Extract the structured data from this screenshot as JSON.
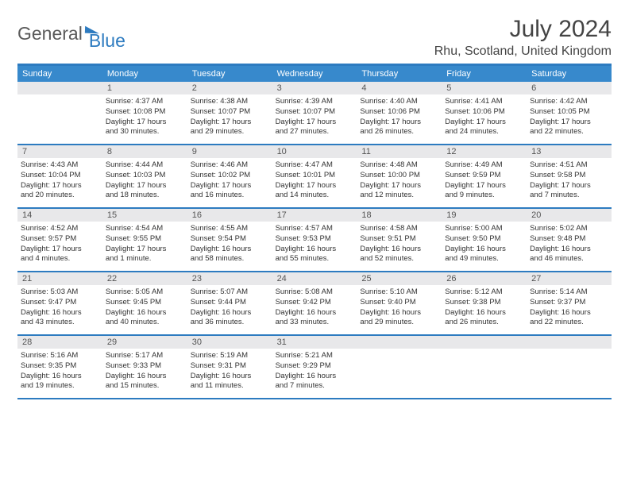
{
  "logo": {
    "text1": "General",
    "text2": "Blue"
  },
  "title": "July 2024",
  "location": "Rhu, Scotland, United Kingdom",
  "day_names": [
    "Sunday",
    "Monday",
    "Tuesday",
    "Wednesday",
    "Thursday",
    "Friday",
    "Saturday"
  ],
  "colors": {
    "accent": "#2d7bc0",
    "header_bg": "#3789cc",
    "daynum_bg": "#e8e8ea",
    "text": "#333333"
  },
  "weeks": [
    [
      {
        "day": "",
        "lines": [
          "",
          "",
          "",
          ""
        ]
      },
      {
        "day": "1",
        "lines": [
          "Sunrise: 4:37 AM",
          "Sunset: 10:08 PM",
          "Daylight: 17 hours",
          "and 30 minutes."
        ]
      },
      {
        "day": "2",
        "lines": [
          "Sunrise: 4:38 AM",
          "Sunset: 10:07 PM",
          "Daylight: 17 hours",
          "and 29 minutes."
        ]
      },
      {
        "day": "3",
        "lines": [
          "Sunrise: 4:39 AM",
          "Sunset: 10:07 PM",
          "Daylight: 17 hours",
          "and 27 minutes."
        ]
      },
      {
        "day": "4",
        "lines": [
          "Sunrise: 4:40 AM",
          "Sunset: 10:06 PM",
          "Daylight: 17 hours",
          "and 26 minutes."
        ]
      },
      {
        "day": "5",
        "lines": [
          "Sunrise: 4:41 AM",
          "Sunset: 10:06 PM",
          "Daylight: 17 hours",
          "and 24 minutes."
        ]
      },
      {
        "day": "6",
        "lines": [
          "Sunrise: 4:42 AM",
          "Sunset: 10:05 PM",
          "Daylight: 17 hours",
          "and 22 minutes."
        ]
      }
    ],
    [
      {
        "day": "7",
        "lines": [
          "Sunrise: 4:43 AM",
          "Sunset: 10:04 PM",
          "Daylight: 17 hours",
          "and 20 minutes."
        ]
      },
      {
        "day": "8",
        "lines": [
          "Sunrise: 4:44 AM",
          "Sunset: 10:03 PM",
          "Daylight: 17 hours",
          "and 18 minutes."
        ]
      },
      {
        "day": "9",
        "lines": [
          "Sunrise: 4:46 AM",
          "Sunset: 10:02 PM",
          "Daylight: 17 hours",
          "and 16 minutes."
        ]
      },
      {
        "day": "10",
        "lines": [
          "Sunrise: 4:47 AM",
          "Sunset: 10:01 PM",
          "Daylight: 17 hours",
          "and 14 minutes."
        ]
      },
      {
        "day": "11",
        "lines": [
          "Sunrise: 4:48 AM",
          "Sunset: 10:00 PM",
          "Daylight: 17 hours",
          "and 12 minutes."
        ]
      },
      {
        "day": "12",
        "lines": [
          "Sunrise: 4:49 AM",
          "Sunset: 9:59 PM",
          "Daylight: 17 hours",
          "and 9 minutes."
        ]
      },
      {
        "day": "13",
        "lines": [
          "Sunrise: 4:51 AM",
          "Sunset: 9:58 PM",
          "Daylight: 17 hours",
          "and 7 minutes."
        ]
      }
    ],
    [
      {
        "day": "14",
        "lines": [
          "Sunrise: 4:52 AM",
          "Sunset: 9:57 PM",
          "Daylight: 17 hours",
          "and 4 minutes."
        ]
      },
      {
        "day": "15",
        "lines": [
          "Sunrise: 4:54 AM",
          "Sunset: 9:55 PM",
          "Daylight: 17 hours",
          "and 1 minute."
        ]
      },
      {
        "day": "16",
        "lines": [
          "Sunrise: 4:55 AM",
          "Sunset: 9:54 PM",
          "Daylight: 16 hours",
          "and 58 minutes."
        ]
      },
      {
        "day": "17",
        "lines": [
          "Sunrise: 4:57 AM",
          "Sunset: 9:53 PM",
          "Daylight: 16 hours",
          "and 55 minutes."
        ]
      },
      {
        "day": "18",
        "lines": [
          "Sunrise: 4:58 AM",
          "Sunset: 9:51 PM",
          "Daylight: 16 hours",
          "and 52 minutes."
        ]
      },
      {
        "day": "19",
        "lines": [
          "Sunrise: 5:00 AM",
          "Sunset: 9:50 PM",
          "Daylight: 16 hours",
          "and 49 minutes."
        ]
      },
      {
        "day": "20",
        "lines": [
          "Sunrise: 5:02 AM",
          "Sunset: 9:48 PM",
          "Daylight: 16 hours",
          "and 46 minutes."
        ]
      }
    ],
    [
      {
        "day": "21",
        "lines": [
          "Sunrise: 5:03 AM",
          "Sunset: 9:47 PM",
          "Daylight: 16 hours",
          "and 43 minutes."
        ]
      },
      {
        "day": "22",
        "lines": [
          "Sunrise: 5:05 AM",
          "Sunset: 9:45 PM",
          "Daylight: 16 hours",
          "and 40 minutes."
        ]
      },
      {
        "day": "23",
        "lines": [
          "Sunrise: 5:07 AM",
          "Sunset: 9:44 PM",
          "Daylight: 16 hours",
          "and 36 minutes."
        ]
      },
      {
        "day": "24",
        "lines": [
          "Sunrise: 5:08 AM",
          "Sunset: 9:42 PM",
          "Daylight: 16 hours",
          "and 33 minutes."
        ]
      },
      {
        "day": "25",
        "lines": [
          "Sunrise: 5:10 AM",
          "Sunset: 9:40 PM",
          "Daylight: 16 hours",
          "and 29 minutes."
        ]
      },
      {
        "day": "26",
        "lines": [
          "Sunrise: 5:12 AM",
          "Sunset: 9:38 PM",
          "Daylight: 16 hours",
          "and 26 minutes."
        ]
      },
      {
        "day": "27",
        "lines": [
          "Sunrise: 5:14 AM",
          "Sunset: 9:37 PM",
          "Daylight: 16 hours",
          "and 22 minutes."
        ]
      }
    ],
    [
      {
        "day": "28",
        "lines": [
          "Sunrise: 5:16 AM",
          "Sunset: 9:35 PM",
          "Daylight: 16 hours",
          "and 19 minutes."
        ]
      },
      {
        "day": "29",
        "lines": [
          "Sunrise: 5:17 AM",
          "Sunset: 9:33 PM",
          "Daylight: 16 hours",
          "and 15 minutes."
        ]
      },
      {
        "day": "30",
        "lines": [
          "Sunrise: 5:19 AM",
          "Sunset: 9:31 PM",
          "Daylight: 16 hours",
          "and 11 minutes."
        ]
      },
      {
        "day": "31",
        "lines": [
          "Sunrise: 5:21 AM",
          "Sunset: 9:29 PM",
          "Daylight: 16 hours",
          "and 7 minutes."
        ]
      },
      {
        "day": "",
        "lines": [
          "",
          "",
          "",
          ""
        ]
      },
      {
        "day": "",
        "lines": [
          "",
          "",
          "",
          ""
        ]
      },
      {
        "day": "",
        "lines": [
          "",
          "",
          "",
          ""
        ]
      }
    ]
  ]
}
